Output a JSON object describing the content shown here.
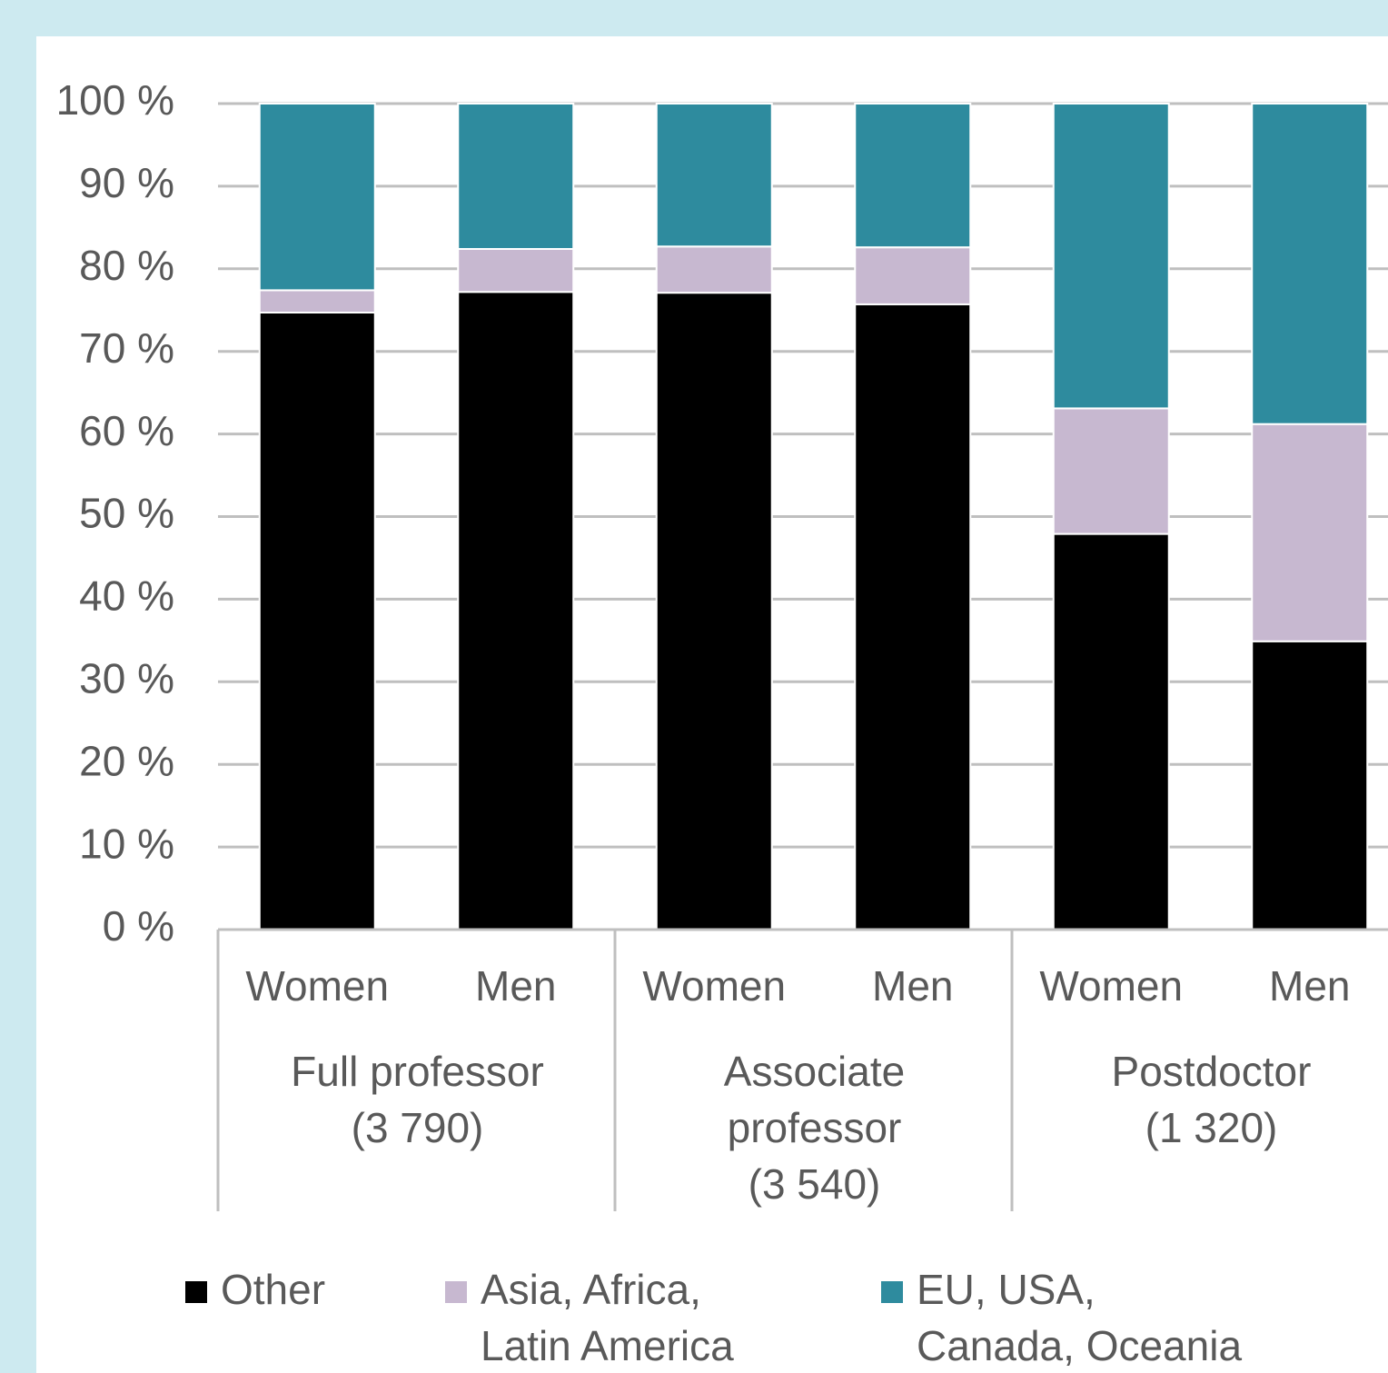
{
  "chart_data": {
    "type": "stacked_bar",
    "categories": [
      "Women",
      "Men",
      "Women",
      "Men",
      "Women",
      "Men"
    ],
    "groups": [
      "Full professor\n(3 790)",
      "Associate\nprofessor\n(3 540)",
      "Postdoctor\n(1 320)"
    ],
    "series": [
      {
        "name": "Other",
        "color": "#000000",
        "values": [
          74.7,
          77.2,
          77.1,
          75.7,
          47.9,
          34.9
        ]
      },
      {
        "name": "Asia, Africa,\nLatin America",
        "color": "#c7b8d0",
        "values": [
          2.7,
          5.2,
          5.6,
          6.9,
          15.2,
          26.3
        ]
      },
      {
        "name": "EU, USA,\nCanada, Oceania",
        "color": "#2e8b9e",
        "values": [
          22.6,
          17.6,
          17.3,
          17.4,
          36.9,
          38.8
        ]
      }
    ],
    "ylim": [
      0,
      100
    ],
    "yticks": [
      {
        "value": 0,
        "label": "0 %"
      },
      {
        "value": 10,
        "label": "10 %"
      },
      {
        "value": 20,
        "label": "20 %"
      },
      {
        "value": 30,
        "label": "30 %"
      },
      {
        "value": 40,
        "label": "40 %"
      },
      {
        "value": 50,
        "label": "50 %"
      },
      {
        "value": 60,
        "label": "60 %"
      },
      {
        "value": 70,
        "label": "70 %"
      },
      {
        "value": 80,
        "label": "80 %"
      },
      {
        "value": 90,
        "label": "90 %"
      },
      {
        "value": 100,
        "label": "100 %"
      }
    ],
    "grid": true,
    "legend": "bottom"
  }
}
